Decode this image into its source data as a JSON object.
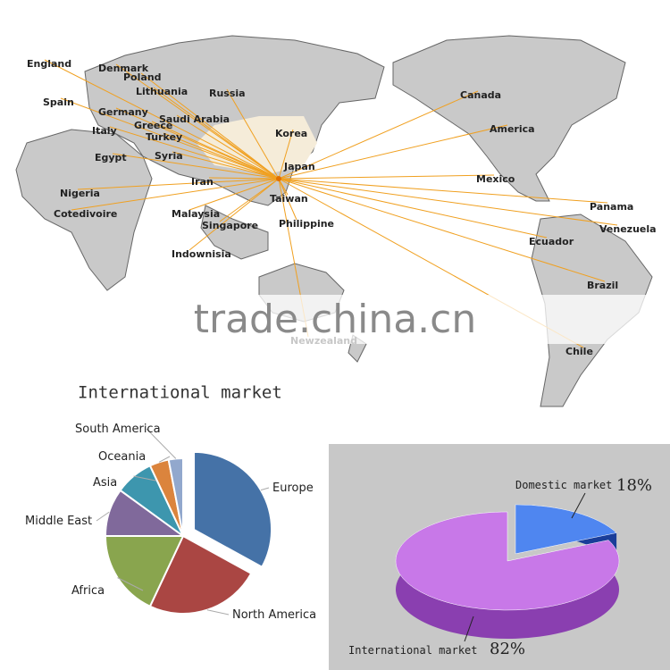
{
  "map": {
    "labels": [
      "England",
      "Denmark",
      "Poland",
      "Lithuania",
      "Spain",
      "Russia",
      "Germany",
      "Saudi Arabia",
      "Greece",
      "Italy",
      "Turkey",
      "Korea",
      "Syria",
      "Egypt",
      "Japan",
      "Iran",
      "Nigeria",
      "Taiwan",
      "Cotedivoire",
      "Malaysia",
      "Singapore",
      "Philippine",
      "Indownisia",
      "Newzealand",
      "Canada",
      "America",
      "Mexico",
      "Panama",
      "Venezuela",
      "Ecuador",
      "Brazil",
      "Chile"
    ],
    "watermark": "trade.china.cn"
  },
  "chart_data": [
    {
      "type": "pie",
      "title": "International market",
      "categories": [
        "Europe",
        "North America",
        "Africa",
        "Middle East",
        "Asia",
        "Oceania",
        "South America"
      ],
      "values": [
        33,
        24,
        18,
        10,
        8,
        4,
        3
      ],
      "colors": [
        "#4572a7",
        "#aa4643",
        "#89a54e",
        "#80699b",
        "#3d96ae",
        "#db843d",
        "#92a8cd"
      ]
    },
    {
      "type": "pie3d",
      "categories": [
        "Domestic market",
        "International market"
      ],
      "values": [
        18,
        82
      ],
      "value_labels": [
        "18%",
        "82%"
      ],
      "colors": [
        "#4f86f0",
        "#c878e8"
      ]
    }
  ]
}
